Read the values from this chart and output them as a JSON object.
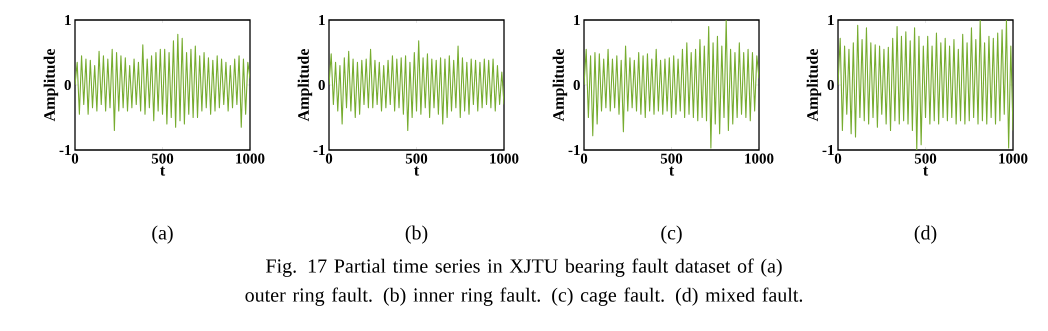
{
  "chart_data": [
    {
      "type": "line",
      "title": "(a)",
      "xlabel": "t",
      "ylabel": "Amplitude",
      "color": "#77ac30",
      "xlim": [
        0,
        1000
      ],
      "ylim": [
        -1,
        1
      ],
      "xticks": [
        0,
        500,
        1000
      ],
      "yticks": [
        -1,
        0,
        1
      ],
      "x": [
        0,
        12.5,
        25,
        37.5,
        50,
        62.5,
        75,
        87.5,
        100,
        112.5,
        125,
        137.5,
        150,
        162.5,
        175,
        187.5,
        200,
        212.5,
        225,
        237.5,
        250,
        262.5,
        275,
        287.5,
        300,
        312.5,
        325,
        337.5,
        350,
        362.5,
        375,
        387.5,
        400,
        412.5,
        425,
        437.5,
        450,
        462.5,
        475,
        487.5,
        500,
        512.5,
        525,
        537.5,
        550,
        562.5,
        575,
        587.5,
        600,
        612.5,
        625,
        637.5,
        650,
        662.5,
        675,
        687.5,
        700,
        712.5,
        725,
        737.5,
        750,
        762.5,
        775,
        787.5,
        800,
        812.5,
        825,
        837.5,
        850,
        862.5,
        875,
        887.5,
        900,
        912.5,
        925,
        937.5,
        950,
        962.5,
        975,
        987.5,
        1000
      ],
      "values": [
        0,
        0.35,
        -0.45,
        0.45,
        -0.3,
        0.4,
        -0.45,
        0.38,
        -0.35,
        0.3,
        -0.4,
        0.52,
        -0.3,
        0.45,
        -0.4,
        0.4,
        -0.35,
        0.55,
        -0.7,
        0.5,
        -0.4,
        0.45,
        -0.35,
        0.42,
        -0.4,
        0.3,
        -0.35,
        0.4,
        -0.3,
        0.35,
        -0.4,
        0.62,
        -0.45,
        0.4,
        -0.35,
        0.45,
        -0.55,
        0.5,
        -0.4,
        0.55,
        -0.45,
        0.55,
        -0.6,
        0.5,
        -0.5,
        0.68,
        -0.65,
        0.78,
        -0.55,
        0.72,
        -0.6,
        0.5,
        -0.45,
        0.55,
        -0.5,
        0.6,
        -0.5,
        0.45,
        -0.4,
        0.5,
        -0.35,
        0.42,
        -0.45,
        0.38,
        -0.4,
        0.45,
        -0.35,
        0.4,
        -0.3,
        0.35,
        -0.4,
        0.3,
        -0.35,
        0.4,
        -0.3,
        0.45,
        -0.65,
        0.4,
        -0.45,
        0.35,
        0.1
      ],
      "annotations": [
        "Fig. 17 Partial time series in XJTU bearing fault dataset of (a) outer ring fault. (b) inner ring fault. (c) cage fault. (d) mixed fault."
      ]
    },
    {
      "type": "line",
      "title": "(b)",
      "xlabel": "t",
      "ylabel": "Amplitude",
      "color": "#77ac30",
      "xlim": [
        0,
        1000
      ],
      "ylim": [
        -1,
        1
      ],
      "xticks": [
        0,
        500,
        1000
      ],
      "yticks": [
        -1,
        0,
        1
      ],
      "x": [
        0,
        12.5,
        25,
        37.5,
        50,
        62.5,
        75,
        87.5,
        100,
        112.5,
        125,
        137.5,
        150,
        162.5,
        175,
        187.5,
        200,
        212.5,
        225,
        237.5,
        250,
        262.5,
        275,
        287.5,
        300,
        312.5,
        325,
        337.5,
        350,
        362.5,
        375,
        387.5,
        400,
        412.5,
        425,
        437.5,
        450,
        462.5,
        475,
        487.5,
        500,
        512.5,
        525,
        537.5,
        550,
        562.5,
        575,
        587.5,
        600,
        612.5,
        625,
        637.5,
        650,
        662.5,
        675,
        687.5,
        700,
        712.5,
        725,
        737.5,
        750,
        762.5,
        775,
        787.5,
        800,
        812.5,
        825,
        837.5,
        850,
        862.5,
        875,
        887.5,
        900,
        912.5,
        925,
        937.5,
        950,
        962.5,
        975,
        987.5,
        1000
      ],
      "values": [
        0,
        0.48,
        -0.3,
        0.35,
        -0.4,
        0.3,
        -0.6,
        0.42,
        -0.35,
        0.52,
        -0.4,
        0.4,
        -0.5,
        0.35,
        -0.45,
        0.38,
        -0.3,
        0.4,
        -0.35,
        0.55,
        -0.35,
        0.38,
        -0.3,
        0.35,
        -0.4,
        0.3,
        -0.35,
        0.38,
        -0.3,
        0.45,
        -0.4,
        0.4,
        -0.35,
        0.42,
        -0.45,
        0.45,
        -0.7,
        0.35,
        -0.5,
        0.5,
        -0.4,
        0.68,
        -0.45,
        0.42,
        -0.35,
        0.48,
        -0.5,
        0.4,
        -0.35,
        0.38,
        -0.45,
        0.42,
        -0.6,
        0.4,
        -0.5,
        0.45,
        -0.4,
        0.38,
        -0.35,
        0.6,
        -0.5,
        0.42,
        -0.4,
        0.35,
        -0.45,
        0.4,
        -0.3,
        0.38,
        -0.4,
        0.35,
        -0.35,
        0.4,
        -0.3,
        0.38,
        -0.35,
        0.4,
        -0.4,
        0.3,
        -0.3,
        0.2,
        -0.3
      ]
    },
    {
      "type": "line",
      "title": "(c)",
      "xlabel": "t",
      "ylabel": "Amplitude",
      "color": "#77ac30",
      "xlim": [
        0,
        1000
      ],
      "ylim": [
        -1,
        1
      ],
      "xticks": [
        0,
        500,
        1000
      ],
      "yticks": [
        -1,
        0,
        1
      ],
      "x": [
        0,
        12.5,
        25,
        37.5,
        50,
        62.5,
        75,
        87.5,
        100,
        112.5,
        125,
        137.5,
        150,
        162.5,
        175,
        187.5,
        200,
        212.5,
        225,
        237.5,
        250,
        262.5,
        275,
        287.5,
        300,
        312.5,
        325,
        337.5,
        350,
        362.5,
        375,
        387.5,
        400,
        412.5,
        425,
        437.5,
        450,
        462.5,
        475,
        487.5,
        500,
        512.5,
        525,
        537.5,
        550,
        562.5,
        575,
        587.5,
        600,
        612.5,
        625,
        637.5,
        650,
        662.5,
        675,
        687.5,
        700,
        712.5,
        725,
        737.5,
        750,
        762.5,
        775,
        787.5,
        800,
        812.5,
        825,
        837.5,
        850,
        862.5,
        875,
        887.5,
        900,
        912.5,
        925,
        937.5,
        950,
        962.5,
        975,
        987.5,
        1000
      ],
      "values": [
        0,
        0.55,
        -0.5,
        0.45,
        -0.78,
        0.5,
        -0.6,
        0.48,
        -0.4,
        0.4,
        -0.35,
        0.55,
        -0.4,
        0.4,
        -0.35,
        0.45,
        -0.45,
        0.38,
        -0.72,
        0.6,
        -0.4,
        0.42,
        -0.35,
        0.38,
        -0.4,
        0.5,
        -0.45,
        0.45,
        -0.5,
        0.48,
        -0.4,
        0.4,
        -0.45,
        0.55,
        -0.4,
        0.38,
        -0.45,
        0.4,
        -0.4,
        0.42,
        -0.5,
        0.45,
        -0.45,
        0.4,
        -0.4,
        0.55,
        -0.5,
        0.65,
        -0.45,
        0.5,
        -0.5,
        0.55,
        -0.55,
        0.7,
        -0.5,
        0.6,
        -0.55,
        0.9,
        -0.97,
        0.65,
        -0.6,
        0.75,
        -0.75,
        0.6,
        -0.5,
        1.0,
        -0.7,
        0.55,
        -0.6,
        0.5,
        -0.5,
        0.65,
        -0.45,
        0.5,
        -0.5,
        0.55,
        -0.55,
        0.5,
        -0.4,
        0.45,
        0.1
      ]
    },
    {
      "type": "line",
      "title": "(d)",
      "xlabel": "t",
      "ylabel": "Amplitude",
      "color": "#77ac30",
      "xlim": [
        0,
        1000
      ],
      "ylim": [
        -1,
        1
      ],
      "xticks": [
        0,
        500,
        1000
      ],
      "yticks": [
        -1,
        0,
        1
      ],
      "x": [
        0,
        12.5,
        25,
        37.5,
        50,
        62.5,
        75,
        87.5,
        100,
        112.5,
        125,
        137.5,
        150,
        162.5,
        175,
        187.5,
        200,
        212.5,
        225,
        237.5,
        250,
        262.5,
        275,
        287.5,
        300,
        312.5,
        325,
        337.5,
        350,
        362.5,
        375,
        387.5,
        400,
        412.5,
        425,
        437.5,
        450,
        462.5,
        475,
        487.5,
        500,
        512.5,
        525,
        537.5,
        550,
        562.5,
        575,
        587.5,
        600,
        612.5,
        625,
        637.5,
        650,
        662.5,
        675,
        687.5,
        700,
        712.5,
        725,
        737.5,
        750,
        762.5,
        775,
        787.5,
        800,
        812.5,
        825,
        837.5,
        850,
        862.5,
        875,
        887.5,
        900,
        912.5,
        925,
        937.5,
        950,
        962.5,
        975,
        987.5,
        1000
      ],
      "values": [
        0,
        0.72,
        -0.7,
        0.6,
        -0.45,
        0.55,
        -0.75,
        0.65,
        -0.8,
        0.92,
        -0.5,
        0.7,
        -0.55,
        0.88,
        -0.6,
        0.65,
        -0.5,
        0.62,
        -0.65,
        0.6,
        -0.45,
        0.55,
        -0.6,
        0.58,
        -0.7,
        0.72,
        -0.55,
        0.9,
        -0.6,
        0.75,
        -0.55,
        0.82,
        -0.6,
        0.68,
        -0.7,
        0.88,
        -1.0,
        0.75,
        -0.92,
        0.6,
        -0.5,
        0.75,
        -0.6,
        0.6,
        -0.55,
        0.8,
        -0.6,
        0.65,
        -0.5,
        0.72,
        -0.55,
        0.6,
        -0.5,
        0.7,
        -0.6,
        0.55,
        -0.55,
        0.78,
        -0.6,
        0.65,
        -0.55,
        0.88,
        -0.5,
        0.7,
        -0.6,
        1.0,
        -0.55,
        0.65,
        -0.6,
        0.75,
        -0.5,
        0.72,
        -0.6,
        0.8,
        -0.55,
        0.85,
        -0.45,
        1.0,
        -0.97,
        0.6,
        -0.7
      ]
    }
  ]
}
